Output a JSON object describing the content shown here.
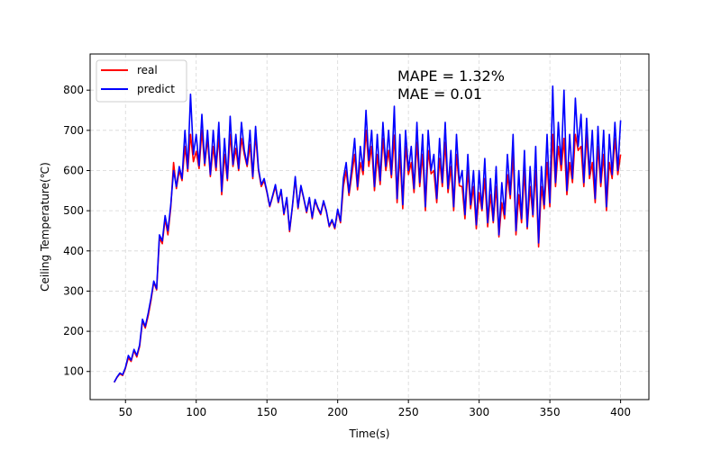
{
  "chart_data": {
    "type": "line",
    "xlabel": "Time(s)",
    "ylabel": "Ceiling Temperature(℃)",
    "xlim": [
      25,
      420
    ],
    "ylim": [
      30,
      890
    ],
    "xticks": [
      50,
      100,
      150,
      200,
      250,
      300,
      350,
      400
    ],
    "yticks": [
      100,
      200,
      300,
      400,
      500,
      600,
      700,
      800
    ],
    "grid": true,
    "legend": "upper-left",
    "annotations": [
      "MAPE = 1.32%",
      "MAE = 0.01"
    ],
    "series": [
      {
        "name": "real",
        "color": "#ff0000"
      },
      {
        "name": "predict",
        "color": "#0000ff"
      }
    ],
    "x": [
      42,
      44,
      46,
      48,
      50,
      52,
      54,
      56,
      58,
      60,
      62,
      64,
      66,
      68,
      70,
      72,
      74,
      76,
      78,
      80,
      82,
      84,
      86,
      88,
      90,
      92,
      94,
      96,
      98,
      100,
      102,
      104,
      106,
      108,
      110,
      112,
      114,
      116,
      118,
      120,
      122,
      124,
      126,
      128,
      130,
      132,
      134,
      136,
      138,
      140,
      142,
      144,
      146,
      148,
      150,
      152,
      154,
      156,
      158,
      160,
      162,
      164,
      166,
      168,
      170,
      172,
      174,
      176,
      178,
      180,
      182,
      184,
      186,
      188,
      190,
      192,
      194,
      196,
      198,
      200,
      202,
      204,
      206,
      208,
      210,
      212,
      214,
      216,
      218,
      220,
      222,
      224,
      226,
      228,
      230,
      232,
      234,
      236,
      238,
      240,
      242,
      244,
      246,
      248,
      250,
      252,
      254,
      256,
      258,
      260,
      262,
      264,
      266,
      268,
      270,
      272,
      274,
      276,
      278,
      280,
      282,
      284,
      286,
      288,
      290,
      292,
      294,
      296,
      298,
      300,
      302,
      304,
      306,
      308,
      310,
      312,
      314,
      316,
      318,
      320,
      322,
      324,
      326,
      328,
      330,
      332,
      334,
      336,
      338,
      340,
      342,
      344,
      346,
      348,
      350,
      352,
      354,
      356,
      358,
      360,
      362,
      364,
      366,
      368,
      370,
      372,
      374,
      376,
      378,
      380,
      382,
      384,
      386,
      388,
      390,
      392,
      394,
      396,
      398,
      400
    ],
    "real": [
      73,
      85,
      94,
      90,
      108,
      134,
      125,
      152,
      136,
      162,
      225,
      208,
      238,
      276,
      322,
      303,
      432,
      418,
      480,
      440,
      508,
      620,
      555,
      600,
      575,
      660,
      598,
      690,
      622,
      648,
      605,
      700,
      612,
      680,
      585,
      660,
      600,
      688,
      540,
      640,
      575,
      690,
      610,
      655,
      600,
      680,
      640,
      610,
      665,
      580,
      690,
      600,
      560,
      575,
      545,
      510,
      535,
      560,
      520,
      550,
      490,
      530,
      448,
      510,
      580,
      505,
      560,
      530,
      495,
      530,
      480,
      525,
      505,
      490,
      522,
      498,
      460,
      475,
      455,
      500,
      470,
      560,
      600,
      538,
      590,
      640,
      552,
      620,
      590,
      700,
      610,
      660,
      550,
      640,
      565,
      680,
      600,
      650,
      582,
      688,
      520,
      640,
      505,
      660,
      590,
      620,
      545,
      670,
      560,
      640,
      500,
      650,
      592,
      600,
      520,
      630,
      560,
      670,
      545,
      610,
      500,
      640,
      562,
      560,
      480,
      600,
      505,
      560,
      455,
      545,
      500,
      580,
      460,
      540,
      470,
      560,
      435,
      520,
      480,
      590,
      530,
      640,
      440,
      540,
      470,
      600,
      455,
      560,
      485,
      600,
      410,
      560,
      505,
      620,
      510,
      690,
      560,
      660,
      600,
      680,
      540,
      620,
      570,
      690,
      650,
      660,
      560,
      690,
      580,
      620,
      520,
      660,
      560,
      640,
      500,
      620,
      580,
      680,
      590,
      640
    ],
    "predict": [
      73,
      86,
      96,
      92,
      110,
      140,
      128,
      155,
      140,
      166,
      230,
      212,
      245,
      282,
      325,
      306,
      440,
      425,
      488,
      450,
      515,
      600,
      560,
      610,
      580,
      700,
      605,
      790,
      640,
      690,
      612,
      740,
      618,
      700,
      590,
      700,
      608,
      720,
      548,
      680,
      580,
      735,
      615,
      690,
      605,
      720,
      650,
      615,
      700,
      585,
      710,
      605,
      565,
      580,
      548,
      512,
      538,
      565,
      522,
      553,
      493,
      533,
      452,
      513,
      585,
      508,
      563,
      532,
      498,
      533,
      483,
      528,
      508,
      493,
      525,
      500,
      462,
      478,
      458,
      504,
      474,
      580,
      620,
      545,
      610,
      680,
      560,
      660,
      600,
      750,
      625,
      700,
      560,
      690,
      575,
      720,
      610,
      700,
      590,
      760,
      530,
      690,
      515,
      700,
      600,
      660,
      555,
      720,
      570,
      690,
      510,
      700,
      600,
      640,
      530,
      680,
      570,
      720,
      555,
      650,
      510,
      690,
      570,
      600,
      490,
      640,
      515,
      600,
      465,
      600,
      505,
      630,
      470,
      580,
      475,
      610,
      440,
      570,
      490,
      640,
      540,
      690,
      450,
      600,
      480,
      650,
      460,
      610,
      490,
      660,
      420,
      610,
      515,
      690,
      520,
      810,
      570,
      720,
      615,
      800,
      550,
      690,
      580,
      780,
      660,
      740,
      570,
      730,
      590,
      700,
      530,
      710,
      570,
      700,
      510,
      690,
      590,
      720,
      600,
      725
    ]
  }
}
